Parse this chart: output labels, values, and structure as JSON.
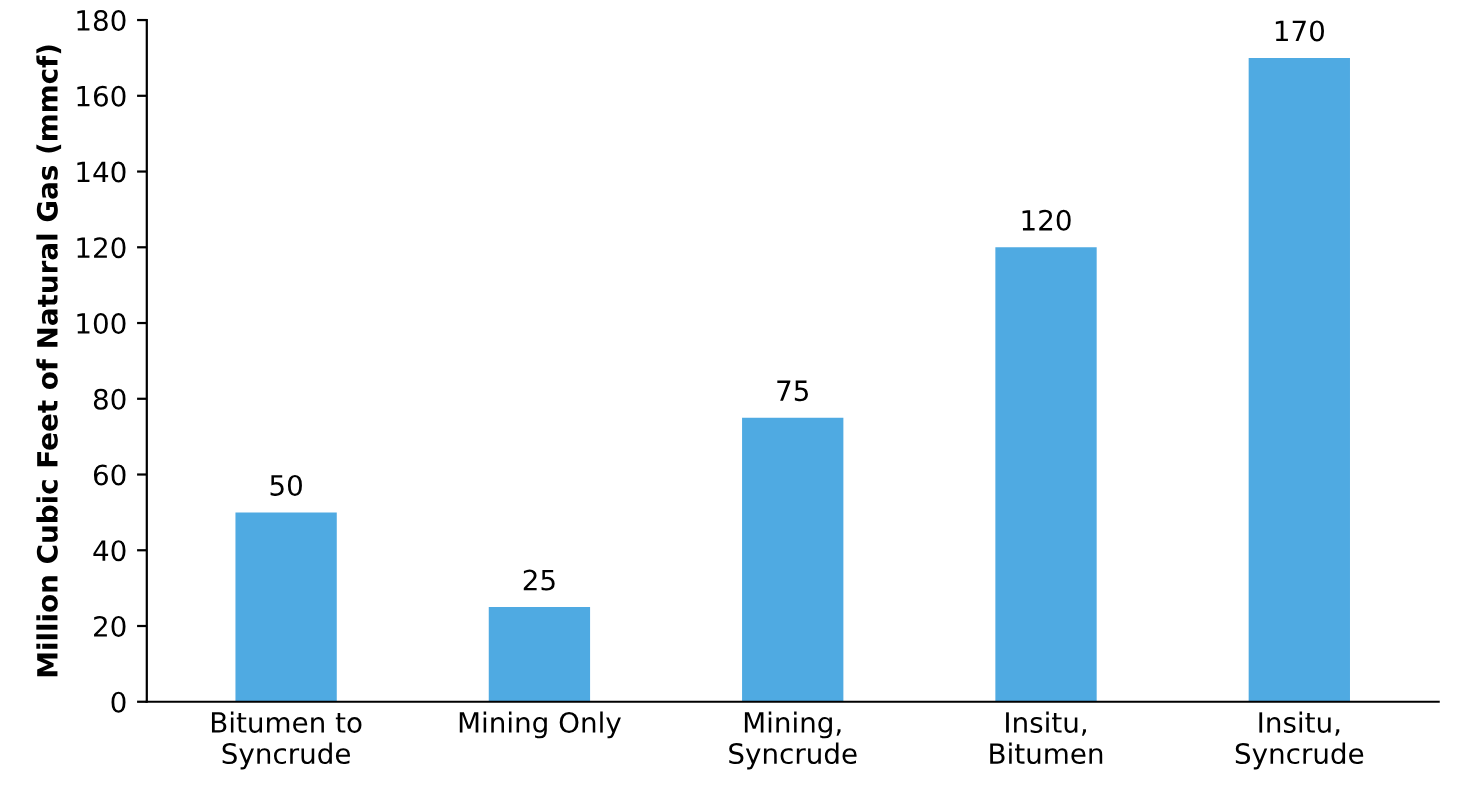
{
  "chart_data": {
    "type": "bar",
    "ylabel": "Million Cubic Feet of Natural Gas (mmcf)",
    "categories": [
      "Bitumen to\nSyncrude",
      "Mining Only",
      "Mining,\nSyncrude",
      "Insitu,\nBitumen",
      "Insitu,\nSyncrude"
    ],
    "values": [
      50,
      25,
      75,
      120,
      170
    ],
    "color": "#4faae2",
    "ylim": [
      0,
      180
    ],
    "yticks": [
      0,
      20,
      40,
      60,
      80,
      100,
      120,
      140,
      160,
      180
    ],
    "grid": false,
    "data_labels": true
  }
}
